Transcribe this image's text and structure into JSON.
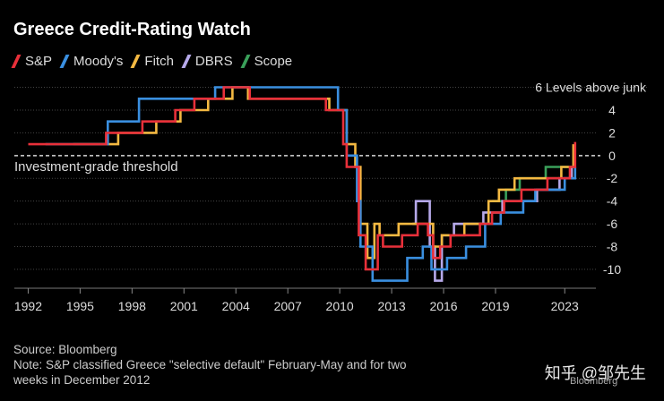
{
  "chart_data": {
    "type": "line",
    "title": "Greece Credit-Rating Watch",
    "xlabel": "",
    "ylabel": "",
    "x_ticks": [
      "1992",
      "1995",
      "1998",
      "2001",
      "2004",
      "2007",
      "2010",
      "2013",
      "2016",
      "2019",
      "2023"
    ],
    "x_tick_values": [
      1992,
      1995,
      1998,
      2001,
      2004,
      2007,
      2010,
      2013,
      2016,
      2019,
      2023
    ],
    "y_ticks": [
      "4",
      "2",
      "0",
      "-2",
      "-4",
      "-6",
      "-8",
      "-10"
    ],
    "y_tick_values": [
      4,
      2,
      0,
      -2,
      -4,
      -6,
      -8,
      -10
    ],
    "xlim": [
      1991.2,
      2024.8
    ],
    "ylim": [
      -11.5,
      6.2
    ],
    "top_level_label": "6 Levels above junk",
    "threshold_label": "Investment-grade threshold",
    "threshold_value": 0,
    "series": [
      {
        "name": "S&P",
        "color": "#e8303a",
        "points": [
          [
            1992,
            1
          ],
          [
            1996.5,
            1
          ],
          [
            1996.5,
            2
          ],
          [
            1998.6,
            2
          ],
          [
            1998.6,
            3
          ],
          [
            2000.5,
            3
          ],
          [
            2000.5,
            4
          ],
          [
            2001.6,
            4
          ],
          [
            2001.6,
            5
          ],
          [
            2003.3,
            5
          ],
          [
            2003.3,
            6
          ],
          [
            2004.8,
            6
          ],
          [
            2004.8,
            5
          ],
          [
            2009.2,
            5
          ],
          [
            2009.2,
            4
          ],
          [
            2010.2,
            4
          ],
          [
            2010.2,
            1
          ],
          [
            2010.4,
            1
          ],
          [
            2010.4,
            -1
          ],
          [
            2011.1,
            -1
          ],
          [
            2011.1,
            -7
          ],
          [
            2011.5,
            -7
          ],
          [
            2011.5,
            -10
          ],
          [
            2012.2,
            -10
          ],
          [
            2012.2,
            -7
          ],
          [
            2012.5,
            -7
          ],
          [
            2012.5,
            -8
          ],
          [
            2013.6,
            -8
          ],
          [
            2013.6,
            -7
          ],
          [
            2014.5,
            -7
          ],
          [
            2014.5,
            -6
          ],
          [
            2015.1,
            -6
          ],
          [
            2015.1,
            -7
          ],
          [
            2015.4,
            -7
          ],
          [
            2015.4,
            -9
          ],
          [
            2015.8,
            -9
          ],
          [
            2015.8,
            -8
          ],
          [
            2016.4,
            -8
          ],
          [
            2016.4,
            -7
          ],
          [
            2018.1,
            -7
          ],
          [
            2018.1,
            -6
          ],
          [
            2018.8,
            -6
          ],
          [
            2018.8,
            -5
          ],
          [
            2019.5,
            -5
          ],
          [
            2019.5,
            -4
          ],
          [
            2020.5,
            -4
          ],
          [
            2020.5,
            -3
          ],
          [
            2022.0,
            -3
          ],
          [
            2022.0,
            -2
          ],
          [
            2023.3,
            -2
          ],
          [
            2023.3,
            -1
          ],
          [
            2023.6,
            -1
          ],
          [
            2023.6,
            1.2
          ]
        ]
      },
      {
        "name": "Moody's",
        "color": "#3a8fe0",
        "points": [
          [
            1993,
            1
          ],
          [
            1996.6,
            1
          ],
          [
            1996.6,
            3
          ],
          [
            1998.4,
            3
          ],
          [
            1998.4,
            5
          ],
          [
            2002.8,
            5
          ],
          [
            2002.8,
            6
          ],
          [
            2009.9,
            6
          ],
          [
            2009.9,
            4
          ],
          [
            2010.4,
            4
          ],
          [
            2010.4,
            0
          ],
          [
            2011.0,
            0
          ],
          [
            2011.0,
            -4
          ],
          [
            2011.2,
            -4
          ],
          [
            2011.2,
            -8
          ],
          [
            2011.9,
            -8
          ],
          [
            2011.9,
            -11
          ],
          [
            2013.9,
            -11
          ],
          [
            2013.9,
            -9
          ],
          [
            2014.8,
            -9
          ],
          [
            2014.8,
            -8
          ],
          [
            2015.3,
            -8
          ],
          [
            2015.3,
            -10
          ],
          [
            2016.2,
            -10
          ],
          [
            2016.2,
            -9
          ],
          [
            2017.3,
            -9
          ],
          [
            2017.3,
            -8
          ],
          [
            2018.4,
            -8
          ],
          [
            2018.4,
            -6
          ],
          [
            2019.3,
            -6
          ],
          [
            2019.3,
            -5
          ],
          [
            2020.6,
            -5
          ],
          [
            2020.6,
            -4
          ],
          [
            2021.3,
            -4
          ],
          [
            2021.3,
            -3
          ],
          [
            2023.0,
            -3
          ],
          [
            2023.0,
            -2
          ],
          [
            2023.6,
            -2
          ],
          [
            2023.6,
            -1
          ]
        ]
      },
      {
        "name": "Fitch",
        "color": "#f4b942",
        "points": [
          [
            1994.6,
            1
          ],
          [
            1997.2,
            1
          ],
          [
            1997.2,
            2
          ],
          [
            1999.4,
            2
          ],
          [
            1999.4,
            3
          ],
          [
            2000.8,
            3
          ],
          [
            2000.8,
            4
          ],
          [
            2002.4,
            4
          ],
          [
            2002.4,
            5
          ],
          [
            2003.8,
            5
          ],
          [
            2003.8,
            6
          ],
          [
            2004.7,
            6
          ],
          [
            2004.7,
            5
          ],
          [
            2009.4,
            5
          ],
          [
            2009.4,
            4
          ],
          [
            2010.4,
            4
          ],
          [
            2010.4,
            1
          ],
          [
            2010.9,
            1
          ],
          [
            2010.9,
            -1
          ],
          [
            2011.2,
            -1
          ],
          [
            2011.2,
            -6
          ],
          [
            2011.6,
            -6
          ],
          [
            2011.6,
            -9
          ],
          [
            2012.0,
            -9
          ],
          [
            2012.0,
            -6
          ],
          [
            2012.3,
            -6
          ],
          [
            2012.3,
            -7
          ],
          [
            2013.4,
            -7
          ],
          [
            2013.4,
            -6
          ],
          [
            2015.4,
            -6
          ],
          [
            2015.4,
            -8
          ],
          [
            2015.9,
            -8
          ],
          [
            2015.9,
            -7
          ],
          [
            2017.2,
            -7
          ],
          [
            2017.2,
            -6
          ],
          [
            2018.6,
            -6
          ],
          [
            2018.6,
            -4
          ],
          [
            2019.2,
            -4
          ],
          [
            2019.2,
            -3
          ],
          [
            2020.1,
            -3
          ],
          [
            2020.1,
            -2
          ],
          [
            2022.8,
            -2
          ],
          [
            2022.8,
            -1
          ],
          [
            2023.5,
            -1
          ],
          [
            2023.5,
            1
          ]
        ]
      },
      {
        "name": "DBRS",
        "color": "#b6a9ea",
        "points": [
          [
            2014.2,
            -6
          ],
          [
            2014.4,
            -6
          ],
          [
            2014.4,
            -4
          ],
          [
            2015.2,
            -4
          ],
          [
            2015.2,
            -8
          ],
          [
            2015.5,
            -8
          ],
          [
            2015.5,
            -11
          ],
          [
            2015.9,
            -11
          ],
          [
            2015.9,
            -7
          ],
          [
            2016.6,
            -7
          ],
          [
            2016.6,
            -6
          ],
          [
            2018.3,
            -6
          ],
          [
            2018.3,
            -5
          ],
          [
            2019.4,
            -5
          ],
          [
            2019.4,
            -4
          ],
          [
            2021.4,
            -4
          ],
          [
            2021.4,
            -3
          ],
          [
            2022.7,
            -3
          ],
          [
            2022.7,
            -2
          ],
          [
            2023.4,
            -2
          ],
          [
            2023.4,
            -1
          ]
        ]
      },
      {
        "name": "Scope",
        "color": "#3aa05a",
        "points": [
          [
            2018.8,
            -4
          ],
          [
            2019.6,
            -4
          ],
          [
            2019.6,
            -3
          ],
          [
            2020.4,
            -3
          ],
          [
            2020.4,
            -2
          ],
          [
            2021.9,
            -2
          ],
          [
            2021.9,
            -1
          ],
          [
            2023.6,
            -1
          ]
        ]
      }
    ]
  },
  "source_text": "Source: Bloomberg",
  "note_line1": "Note: S&P classified Greece \"selective default\" February-May and for two",
  "note_line2": "weeks in December 2012",
  "watermark": "知乎 @邹先生",
  "brand": "Bloomberg",
  "colors": {
    "background": "#000000",
    "grid": "#444444",
    "threshold": "#d9d9d9"
  }
}
